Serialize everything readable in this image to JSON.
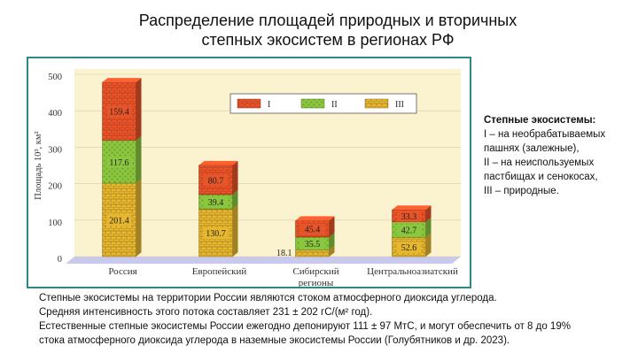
{
  "title_line1": "Распределение площадей природных и вторичных",
  "title_line2": "степных экосистем в регионах РФ",
  "side": {
    "heading": "Степные экосистемы:",
    "lines": [
      "I – на необрабатываемых",
      "пашнях (залежные),",
      "II – на неиспользуемых",
      "пастбищах и сенокосах,",
      "III – природные."
    ]
  },
  "notes": [
    "Степные экосистемы на территории России являются стоком атмосферного диоксида углерода.",
    "Средняя интенсивность этого потока составляет 231 ± 202 гС/(м² год).",
    "Естественные степные экосистемы России ежегодно депонируют 111 ± 97 МтС, и могут обеспечить от 8 до 19%",
    "стока атмосферного диоксида углерода в наземные экосистемы России (Голубятников и др. 2023)."
  ],
  "chart_data": {
    "type": "bar",
    "stacked": true,
    "categories": [
      "Россия",
      "Европейский",
      "Сибирский",
      "Центральноазиатский"
    ],
    "category_sublabels": [
      "",
      "",
      "регионы",
      ""
    ],
    "ylabel": "Площадь 10³, км²",
    "ylim": [
      0,
      500
    ],
    "yticks": [
      0,
      100,
      200,
      300,
      400,
      500
    ],
    "series": [
      {
        "name": "III",
        "color": "#e8b830",
        "values": [
          201.4,
          130.7,
          18.1,
          52.6
        ]
      },
      {
        "name": "II",
        "color": "#8cc63f",
        "values": [
          117.6,
          39.4,
          35.5,
          42.7
        ]
      },
      {
        "name": "I",
        "color": "#e8552a",
        "values": [
          159.4,
          80.7,
          45.4,
          33.3
        ]
      }
    ],
    "legend_position": "top",
    "background": "#fbf3cf"
  }
}
